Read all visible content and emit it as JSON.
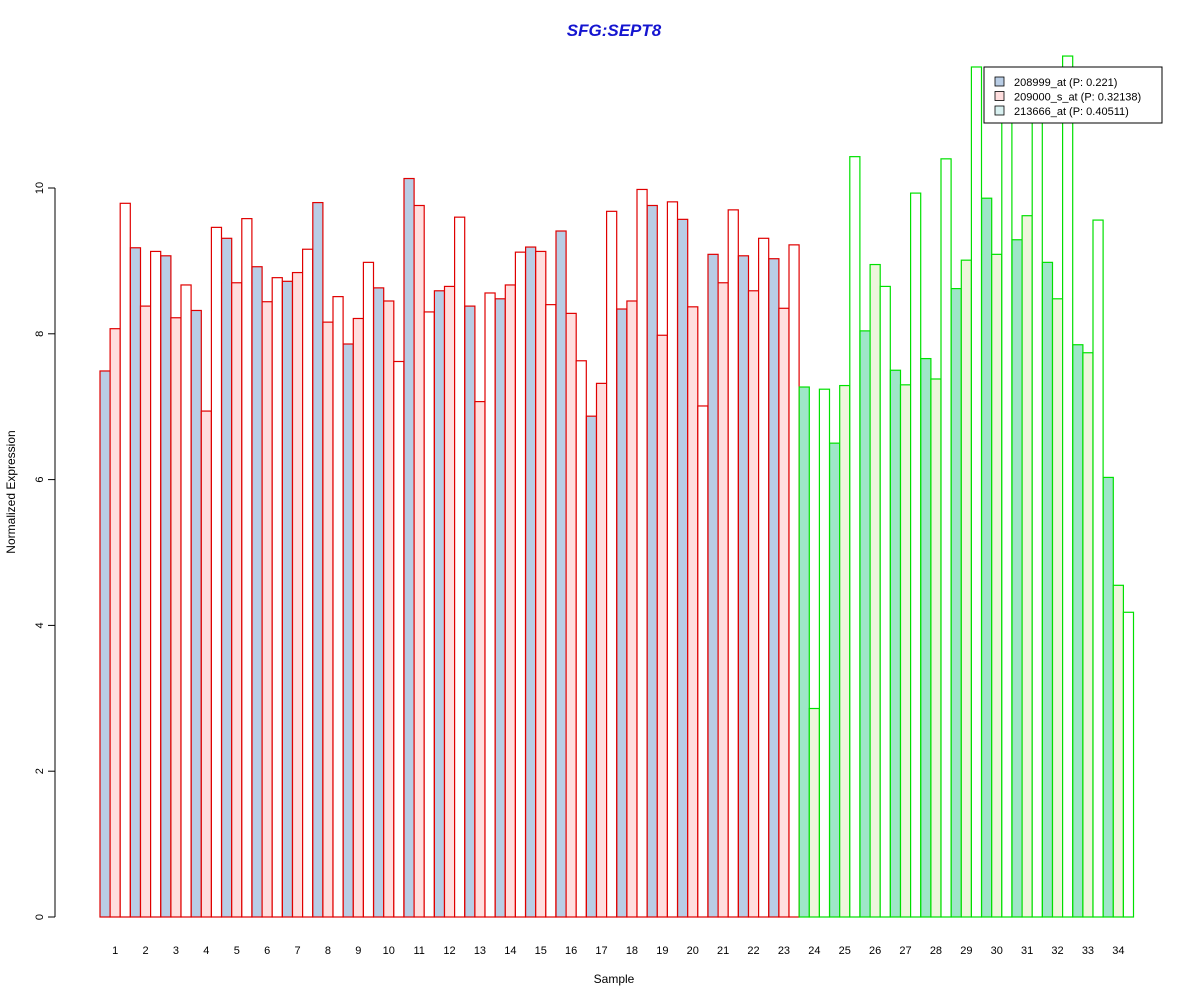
{
  "chart_data": {
    "type": "bar",
    "title": "SFG:SEPT8",
    "xlabel": "Sample",
    "ylabel": "Normalized Expression",
    "ylim": [
      0,
      11.9
    ],
    "yticks": [
      0,
      2,
      4,
      6,
      8,
      10
    ],
    "grid": false,
    "legend_position": "top-right",
    "categories": [
      "1",
      "2",
      "3",
      "4",
      "5",
      "6",
      "7",
      "8",
      "9",
      "10",
      "11",
      "12",
      "13",
      "14",
      "15",
      "16",
      "17",
      "18",
      "19",
      "20",
      "21",
      "22",
      "23",
      "24",
      "25",
      "26",
      "27",
      "28",
      "29",
      "30",
      "31",
      "32",
      "33",
      "34"
    ],
    "series": [
      {
        "name": "208999_at (P: 0.221)",
        "fill": "#b9cde5",
        "values": [
          7.49,
          9.18,
          9.07,
          8.32,
          9.31,
          8.92,
          8.72,
          9.8,
          7.86,
          8.63,
          10.13,
          8.59,
          8.38,
          8.48,
          9.19,
          9.41,
          6.87,
          8.34,
          9.76,
          9.57,
          9.09,
          9.07,
          9.03,
          7.27,
          6.5,
          8.04,
          7.5,
          7.66,
          8.62,
          9.86,
          9.29,
          8.98,
          7.85,
          6.03
        ]
      },
      {
        "name": "209000_s_at (P: 0.32138)",
        "fill": "#ffdede",
        "values": [
          8.07,
          8.38,
          8.22,
          6.94,
          8.7,
          8.44,
          8.84,
          8.16,
          8.21,
          8.45,
          9.76,
          8.65,
          7.07,
          8.67,
          9.13,
          8.28,
          7.32,
          8.45,
          7.98,
          8.37,
          8.7,
          8.59,
          8.35,
          2.86,
          7.29,
          8.95,
          7.3,
          7.38,
          9.01,
          9.09,
          9.62,
          8.48,
          7.74,
          4.55
        ]
      },
      {
        "name": "213666_at (P: 0.40511)",
        "fill": "#ffffff",
        "legend_fill": "#d8f0f0",
        "values": [
          9.79,
          9.13,
          8.67,
          9.46,
          9.58,
          8.77,
          9.16,
          8.51,
          8.98,
          7.62,
          8.3,
          9.6,
          8.56,
          9.12,
          8.4,
          7.63,
          9.68,
          9.98,
          9.81,
          7.01,
          9.7,
          9.31,
          9.22,
          7.24,
          10.43,
          8.65,
          9.93,
          10.4,
          11.66,
          11.2,
          11.3,
          11.81,
          9.56,
          4.18
        ]
      }
    ],
    "group_colors": {
      "red_outline": "#e00000",
      "green_outline": "#00e000",
      "green_fill_1": "#9ee6c8",
      "green_fill_2": "#eef5dc"
    },
    "green_from_sample": 24
  }
}
